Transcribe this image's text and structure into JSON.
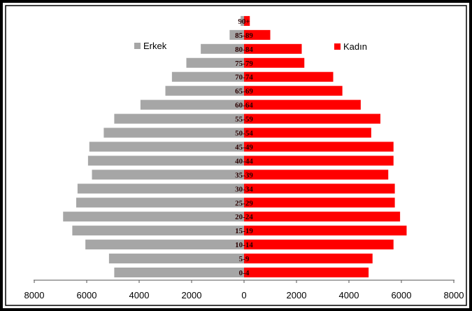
{
  "chart_data": {
    "type": "bar",
    "orientation": "horizontal-pyramid",
    "categories": [
      "0-4",
      "5-9",
      "10-14",
      "15-19",
      "20-24",
      "25-29",
      "30-34",
      "35-39",
      "40-44",
      "45-49",
      "50-54",
      "55-59",
      "60-64",
      "65-69",
      "70-74",
      "75-79",
      "80-84",
      "85-89",
      "90+"
    ],
    "series": [
      {
        "name": "Erkek",
        "color": "#a6a6a6",
        "values": [
          4950,
          5150,
          6050,
          6550,
          6900,
          6400,
          6350,
          5800,
          5950,
          5900,
          5350,
          4950,
          3950,
          3000,
          2750,
          2200,
          1650,
          550,
          130
        ]
      },
      {
        "name": "Kadın",
        "color": "#ff0000",
        "values": [
          4750,
          4900,
          5700,
          6200,
          5950,
          5750,
          5750,
          5500,
          5700,
          5700,
          4850,
          5200,
          4450,
          3750,
          3400,
          2300,
          2200,
          1000,
          220
        ]
      }
    ],
    "x_ticks": [
      "8000",
      "6000",
      "4000",
      "2000",
      "0",
      "2000",
      "4000",
      "6000",
      "8000"
    ],
    "xlim": [
      -8000,
      8000
    ],
    "legend": {
      "position": "top",
      "items": [
        "Erkek",
        "Kadın"
      ]
    },
    "grid": false
  }
}
